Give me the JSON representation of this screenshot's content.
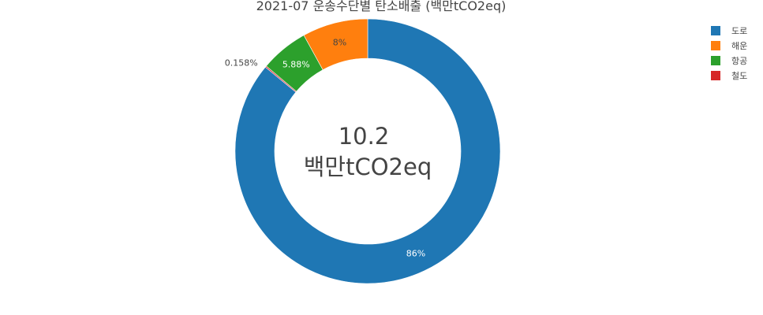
{
  "chart_data": {
    "type": "pie",
    "hole": true,
    "title": "2021-07 운송수단별 탄소배출 (백만tCO2eq)",
    "center_label": {
      "value": "10.2",
      "unit": "백만tCO2eq"
    },
    "slices": [
      {
        "name": "도로",
        "value": 86,
        "label": "86%",
        "color": "#1f77b4",
        "label_color": "#ffffff"
      },
      {
        "name": "철도",
        "value": 0.158,
        "label": "0.158%",
        "color": "#d62728",
        "label_color": "#444444"
      },
      {
        "name": "항공",
        "value": 5.88,
        "label": "5.88%",
        "color": "#2ca02c",
        "label_color": "#ffffff"
      },
      {
        "name": "해운",
        "value": 8,
        "label": "8%",
        "color": "#ff7f0e",
        "label_color": "#444444"
      }
    ],
    "legend": {
      "placement": "top-right",
      "items": [
        {
          "name": "도로",
          "color": "#1f77b4"
        },
        {
          "name": "해운",
          "color": "#ff7f0e"
        },
        {
          "name": "항공",
          "color": "#2ca02c"
        },
        {
          "name": "철도",
          "color": "#d62728"
        }
      ]
    }
  }
}
